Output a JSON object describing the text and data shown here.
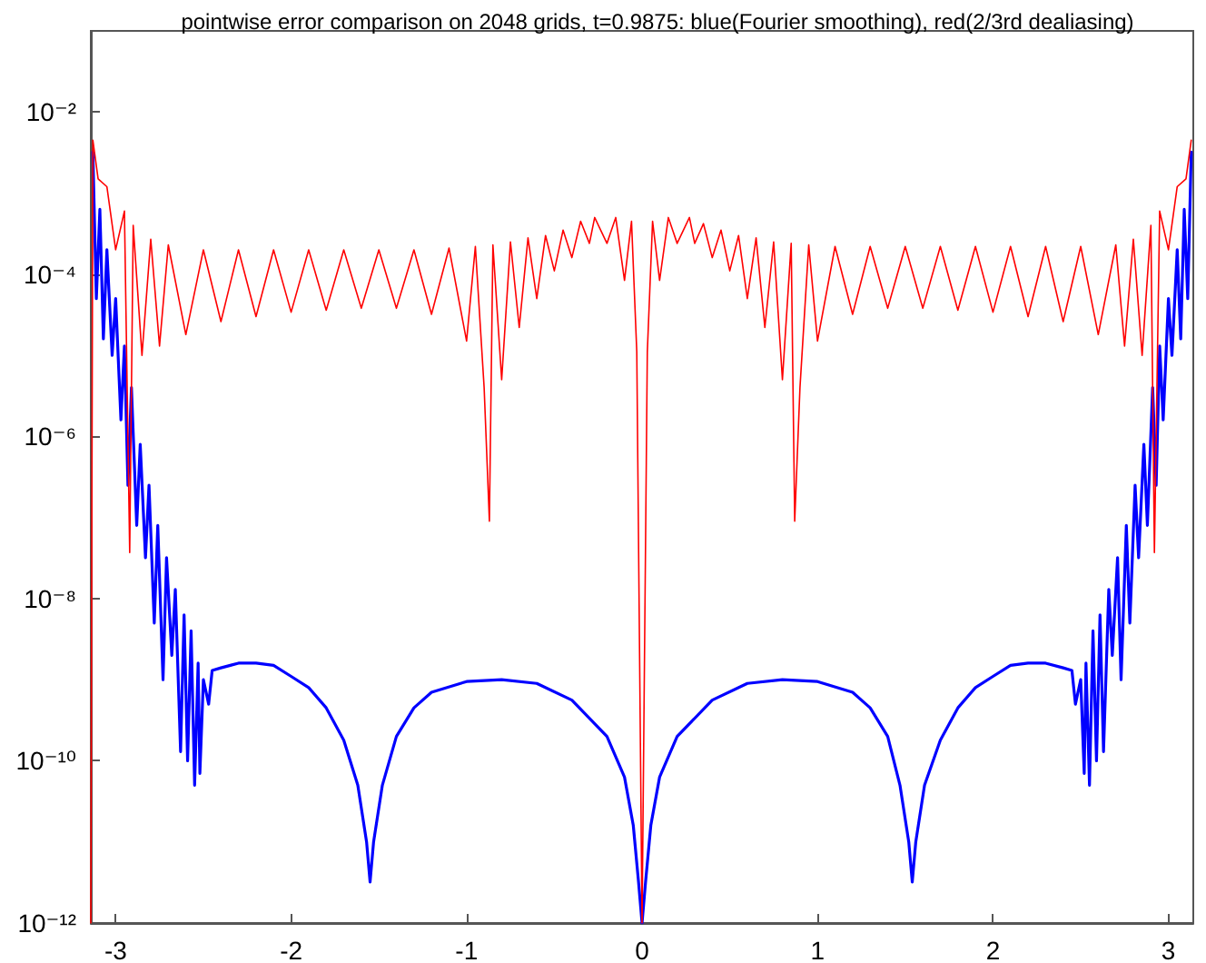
{
  "chart_data": {
    "type": "line",
    "title": "pointwise error comparison on 2048 grids, t=0.9875: blue(Fourier smoothing), red(2/3rd dealiasing)",
    "xlim": [
      -3.1416,
      3.1416
    ],
    "xticks": [
      -3,
      -2,
      -1,
      0,
      1,
      2,
      3
    ],
    "ylim": [
      1e-12,
      0.1
    ],
    "yticks": [
      {
        "value": 1e-12,
        "label": "10⁻¹²"
      },
      {
        "value": 1e-10,
        "label": "10⁻¹⁰"
      },
      {
        "value": 1e-08,
        "label": "10⁻⁸"
      },
      {
        "value": 1e-06,
        "label": "10⁻⁶"
      },
      {
        "value": 0.0001,
        "label": "10⁻⁴"
      },
      {
        "value": 0.01,
        "label": "10⁻²"
      }
    ],
    "log": "y",
    "marker": "none",
    "line_style": "solid",
    "series": [
      {
        "color": "#0000ff",
        "x": [
          -3.13,
          -3.11,
          -3.09,
          -3.07,
          -3.05,
          -3.02,
          -3.0,
          -2.97,
          -2.95,
          -2.93,
          -2.91,
          -2.88,
          -2.86,
          -2.83,
          -2.81,
          -2.78,
          -2.76,
          -2.73,
          -2.71,
          -2.68,
          -2.66,
          -2.63,
          -2.61,
          -2.59,
          -2.57,
          -2.55,
          -2.53,
          -2.52,
          -2.5,
          -2.47,
          -2.45,
          -2.4,
          -2.3,
          -2.2,
          -2.1,
          -2.0,
          -1.9,
          -1.8,
          -1.7,
          -1.62,
          -1.57,
          -1.55,
          -1.53,
          -1.48,
          -1.4,
          -1.3,
          -1.2,
          -1.0,
          -0.8,
          -0.6,
          -0.4,
          -0.2,
          -0.1,
          -0.05,
          -0.02,
          0,
          0.02,
          0.05,
          0.1,
          0.2,
          0.4,
          0.6,
          0.8,
          1.0,
          1.2,
          1.3,
          1.4,
          1.47,
          1.52,
          1.54,
          1.56,
          1.61,
          1.7,
          1.8,
          1.9,
          2.0,
          2.1,
          2.2,
          2.3,
          2.4,
          2.45,
          2.47,
          2.5,
          2.52,
          2.53,
          2.55,
          2.57,
          2.59,
          2.61,
          2.63,
          2.66,
          2.68,
          2.71,
          2.73,
          2.76,
          2.78,
          2.81,
          2.83,
          2.86,
          2.88,
          2.91,
          2.93,
          2.95,
          2.97,
          3.0,
          3.02,
          3.05,
          3.07,
          3.09,
          3.11,
          3.13
        ],
        "values": [
          0.0032,
          5e-05,
          0.00063,
          1.6e-05,
          0.0002,
          1e-05,
          5e-05,
          1.6e-06,
          1.3e-05,
          2.5e-07,
          4e-06,
          8e-08,
          8e-07,
          3.2e-08,
          2.5e-07,
          5e-09,
          8e-08,
          1e-09,
          3.2e-08,
          2e-09,
          1.3e-08,
          1.3e-10,
          6.3e-09,
          1e-10,
          4e-09,
          5e-11,
          1.6e-09,
          7e-11,
          1e-09,
          5e-10,
          1.3e-09,
          1.4e-09,
          1.6e-09,
          1.6e-09,
          1.5e-09,
          1.1e-09,
          8e-10,
          4.5e-10,
          1.8e-10,
          5e-11,
          1e-11,
          3.2e-12,
          1e-11,
          5e-11,
          2e-10,
          4.5e-10,
          7e-10,
          9.5e-10,
          1e-09,
          9e-10,
          5.6e-10,
          2e-10,
          6.3e-11,
          1.6e-11,
          3.2e-12,
          1e-12,
          3.2e-12,
          1.6e-11,
          6.3e-11,
          2e-10,
          5.6e-10,
          9e-10,
          1e-09,
          9.5e-10,
          7e-10,
          4.5e-10,
          2e-10,
          5e-11,
          1e-11,
          3.2e-12,
          1e-11,
          5e-11,
          1.8e-10,
          4.5e-10,
          8e-10,
          1.1e-09,
          1.5e-09,
          1.6e-09,
          1.6e-09,
          1.4e-09,
          1.3e-09,
          5e-10,
          1e-09,
          7e-11,
          1.6e-09,
          5e-11,
          4e-09,
          1e-10,
          6.3e-09,
          1.3e-10,
          1.3e-08,
          2e-09,
          3.2e-08,
          1e-09,
          8e-08,
          5e-09,
          2.5e-07,
          3.2e-08,
          8e-07,
          8e-08,
          4e-06,
          2.5e-07,
          1.3e-05,
          1.6e-06,
          5e-05,
          1e-05,
          0.0002,
          1.6e-05,
          0.00063,
          5e-05,
          0.0032
        ]
      },
      {
        "color": "#ff0000",
        "x": [
          -3.1416,
          -3.13,
          -3.1,
          -3.05,
          -3.0,
          -2.95,
          -2.92,
          -2.9,
          -2.85,
          -2.8,
          -2.75,
          -2.7,
          -2.6,
          -2.5,
          -2.4,
          -2.3,
          -2.2,
          -2.1,
          -2.0,
          -1.9,
          -1.8,
          -1.7,
          -1.6,
          -1.5,
          -1.4,
          -1.3,
          -1.2,
          -1.1,
          -1.0,
          -0.95,
          -0.9,
          -0.87,
          -0.85,
          -0.8,
          -0.75,
          -0.7,
          -0.65,
          -0.6,
          -0.55,
          -0.5,
          -0.45,
          -0.4,
          -0.35,
          -0.3,
          -0.27,
          -0.2,
          -0.15,
          -0.1,
          -0.06,
          -0.03,
          0,
          0.03,
          0.06,
          0.1,
          0.15,
          0.2,
          0.27,
          0.3,
          0.35,
          0.4,
          0.45,
          0.5,
          0.55,
          0.6,
          0.65,
          0.7,
          0.75,
          0.8,
          0.85,
          0.87,
          0.9,
          0.95,
          1.0,
          1.1,
          1.2,
          1.3,
          1.4,
          1.5,
          1.6,
          1.7,
          1.8,
          1.9,
          2.0,
          2.1,
          2.2,
          2.3,
          2.4,
          2.5,
          2.6,
          2.7,
          2.75,
          2.8,
          2.85,
          2.9,
          2.92,
          2.95,
          3.0,
          3.05,
          3.1,
          3.13
        ],
        "values": [
          1e-12,
          0.0045,
          0.0015,
          0.0012,
          0.0002,
          0.0006,
          3.7e-08,
          0.0004,
          1e-05,
          0.00027,
          1.3e-05,
          0.00023,
          1.8e-05,
          0.0002,
          2.6e-05,
          0.0002,
          3e-05,
          0.0002,
          3.4e-05,
          0.0002,
          3.6e-05,
          0.0002,
          3.8e-05,
          0.0002,
          3.8e-05,
          0.0002,
          3.2e-05,
          0.00021,
          1.5e-05,
          0.00022,
          4e-06,
          9e-08,
          0.00023,
          5e-06,
          0.00025,
          2.2e-05,
          0.00028,
          5e-05,
          0.0003,
          0.00011,
          0.00035,
          0.00016,
          0.00045,
          0.00024,
          0.0005,
          0.00024,
          0.0005,
          8.4e-05,
          0.00045,
          1.1e-05,
          1e-12,
          1.1e-05,
          0.00045,
          8.4e-05,
          0.0005,
          0.00024,
          0.0005,
          0.00024,
          0.00042,
          0.00016,
          0.00035,
          0.00011,
          0.0003,
          5e-05,
          0.00028,
          2.2e-05,
          0.00025,
          5e-06,
          0.00024,
          9e-08,
          4e-06,
          0.00023,
          1.5e-05,
          0.00022,
          3.2e-05,
          0.00022,
          3.8e-05,
          0.00022,
          3.8e-05,
          0.00022,
          3.6e-05,
          0.00022,
          3.4e-05,
          0.00022,
          3e-05,
          0.00022,
          2.6e-05,
          0.00022,
          1.8e-05,
          0.00023,
          1.3e-05,
          0.00027,
          1e-05,
          0.0004,
          3.7e-08,
          0.0006,
          0.0002,
          0.0012,
          0.0015,
          0.0045
        ]
      }
    ]
  }
}
